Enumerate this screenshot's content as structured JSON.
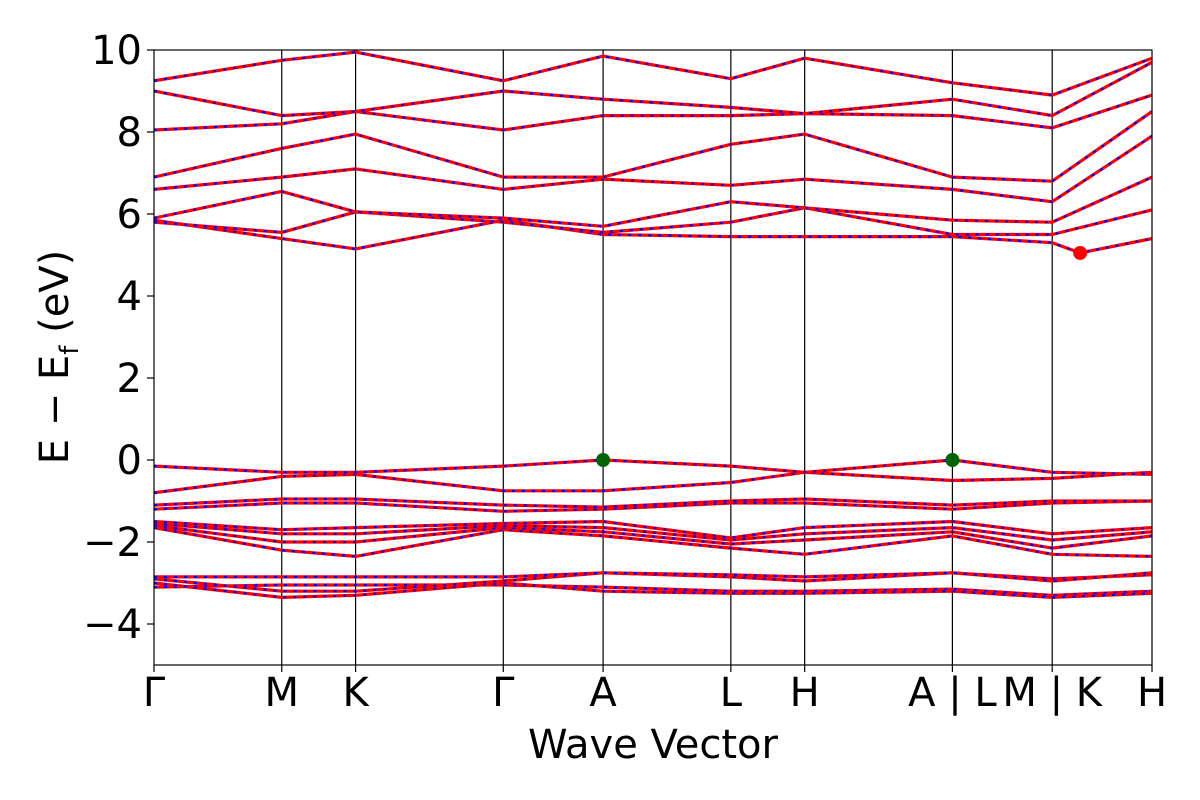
{
  "chart_data": {
    "type": "line",
    "title": "",
    "xlabel": "Wave Vector",
    "ylabel": "E − E_f (eV)",
    "ylabel_parts": {
      "main": "E − E",
      "sub": "f",
      "unit": " (eV)"
    },
    "ylim": [
      -5,
      10
    ],
    "yticks": [
      -4,
      -2,
      0,
      2,
      4,
      6,
      8,
      10
    ],
    "ytick_labels": [
      "−4",
      "−2",
      "0",
      "2",
      "4",
      "6",
      "8",
      "10"
    ],
    "grid": false,
    "legend": "none",
    "colors": {
      "band": "#ff0000",
      "overlay": "#0000ff",
      "vbm_marker": "#006400",
      "cbm_marker": "#ff0000",
      "axis": "#000000"
    },
    "kpath": {
      "positions": [
        0,
        1.28,
        2.02,
        3.5,
        4.5,
        5.78,
        6.52,
        8.0,
        9.0,
        10.0
      ],
      "labels": [
        "Γ",
        "M",
        "K",
        "Γ",
        "A",
        "L",
        "H",
        "A | L",
        "M | K",
        "H"
      ],
      "segment_breaks": [
        8.0,
        9.0
      ]
    },
    "markers": [
      {
        "name": "VBM",
        "x": 4.5,
        "y": 0.0,
        "color": "#006400"
      },
      {
        "name": "VBM",
        "x": 8.0,
        "y": 0.0,
        "color": "#006400"
      },
      {
        "name": "CBM",
        "x": 9.28,
        "y": 5.05,
        "color": "#ff0000"
      }
    ],
    "series": [
      {
        "values": [
          [
            0,
            -3.1
          ],
          [
            1.28,
            -3.05
          ],
          [
            2.02,
            -3.05
          ],
          [
            3.5,
            -3.05
          ],
          [
            4.5,
            -3.1
          ],
          [
            5.78,
            -3.2
          ],
          [
            6.52,
            -3.2
          ],
          [
            8.0,
            -3.15
          ],
          [
            9.0,
            -3.3
          ],
          [
            10.0,
            -3.2
          ]
        ]
      },
      {
        "values": [
          [
            0,
            -3.0
          ],
          [
            1.28,
            -3.35
          ],
          [
            2.02,
            -3.3
          ],
          [
            3.5,
            -3.0
          ],
          [
            4.5,
            -3.2
          ],
          [
            5.78,
            -3.25
          ],
          [
            6.52,
            -3.25
          ],
          [
            8.0,
            -3.2
          ],
          [
            9.0,
            -3.35
          ],
          [
            10.0,
            -3.25
          ]
        ]
      },
      {
        "values": [
          [
            0,
            -2.9
          ],
          [
            1.28,
            -3.2
          ],
          [
            2.02,
            -3.2
          ],
          [
            3.5,
            -2.95
          ],
          [
            4.5,
            -2.75
          ],
          [
            5.78,
            -2.85
          ],
          [
            6.52,
            -2.95
          ],
          [
            8.0,
            -2.75
          ],
          [
            9.0,
            -2.9
          ],
          [
            10.0,
            -2.8
          ]
        ]
      },
      {
        "values": [
          [
            0,
            -2.85
          ],
          [
            1.28,
            -2.85
          ],
          [
            2.02,
            -2.85
          ],
          [
            3.5,
            -2.85
          ],
          [
            4.5,
            -2.75
          ],
          [
            5.78,
            -2.8
          ],
          [
            6.52,
            -2.85
          ],
          [
            8.0,
            -2.75
          ],
          [
            9.0,
            -2.95
          ],
          [
            10.0,
            -2.75
          ]
        ]
      },
      {
        "values": [
          [
            0,
            -1.65
          ],
          [
            1.28,
            -2.2
          ],
          [
            2.02,
            -2.35
          ],
          [
            3.5,
            -1.7
          ],
          [
            4.5,
            -1.85
          ],
          [
            5.78,
            -2.15
          ],
          [
            6.52,
            -2.3
          ],
          [
            8.0,
            -1.85
          ],
          [
            9.0,
            -2.3
          ],
          [
            10.0,
            -2.35
          ]
        ]
      },
      {
        "values": [
          [
            0,
            -1.6
          ],
          [
            1.28,
            -2.0
          ],
          [
            2.02,
            -2.0
          ],
          [
            3.5,
            -1.65
          ],
          [
            4.5,
            -1.75
          ],
          [
            5.78,
            -2.05
          ],
          [
            6.52,
            -1.95
          ],
          [
            8.0,
            -1.75
          ],
          [
            9.0,
            -2.15
          ],
          [
            10.0,
            -1.85
          ]
        ]
      },
      {
        "values": [
          [
            0,
            -1.55
          ],
          [
            1.28,
            -1.8
          ],
          [
            2.02,
            -1.8
          ],
          [
            3.5,
            -1.6
          ],
          [
            4.5,
            -1.65
          ],
          [
            5.78,
            -1.95
          ],
          [
            6.52,
            -1.8
          ],
          [
            8.0,
            -1.65
          ],
          [
            9.0,
            -1.95
          ],
          [
            10.0,
            -1.75
          ]
        ]
      },
      {
        "values": [
          [
            0,
            -1.5
          ],
          [
            1.28,
            -1.7
          ],
          [
            2.02,
            -1.65
          ],
          [
            3.5,
            -1.55
          ],
          [
            4.5,
            -1.5
          ],
          [
            5.78,
            -1.9
          ],
          [
            6.52,
            -1.65
          ],
          [
            8.0,
            -1.5
          ],
          [
            9.0,
            -1.8
          ],
          [
            10.0,
            -1.65
          ]
        ]
      },
      {
        "values": [
          [
            0,
            -1.2
          ],
          [
            1.28,
            -1.05
          ],
          [
            2.02,
            -1.05
          ],
          [
            3.5,
            -1.25
          ],
          [
            4.5,
            -1.2
          ],
          [
            5.78,
            -1.05
          ],
          [
            6.52,
            -1.05
          ],
          [
            8.0,
            -1.2
          ],
          [
            9.0,
            -1.05
          ],
          [
            10.0,
            -1.0
          ]
        ]
      },
      {
        "values": [
          [
            0,
            -1.1
          ],
          [
            1.28,
            -0.95
          ],
          [
            2.02,
            -0.95
          ],
          [
            3.5,
            -1.1
          ],
          [
            4.5,
            -1.15
          ],
          [
            5.78,
            -1.0
          ],
          [
            6.52,
            -0.95
          ],
          [
            8.0,
            -1.1
          ],
          [
            9.0,
            -1.0
          ],
          [
            10.0,
            -1.0
          ]
        ]
      },
      {
        "values": [
          [
            0,
            -0.8
          ],
          [
            1.28,
            -0.4
          ],
          [
            2.02,
            -0.35
          ],
          [
            3.5,
            -0.75
          ],
          [
            4.5,
            -0.75
          ],
          [
            5.78,
            -0.55
          ],
          [
            6.52,
            -0.3
          ],
          [
            8.0,
            -0.5
          ],
          [
            9.0,
            -0.45
          ],
          [
            10.0,
            -0.3
          ]
        ]
      },
      {
        "values": [
          [
            0,
            -0.15
          ],
          [
            1.28,
            -0.3
          ],
          [
            2.02,
            -0.3
          ],
          [
            3.5,
            -0.15
          ],
          [
            4.5,
            0.0
          ],
          [
            5.78,
            -0.15
          ],
          [
            6.52,
            -0.3
          ],
          [
            8.0,
            0.0
          ],
          [
            9.0,
            -0.3
          ],
          [
            10.0,
            -0.35
          ]
        ]
      },
      {
        "values": [
          [
            0,
            5.85
          ],
          [
            1.28,
            5.4
          ],
          [
            2.02,
            5.15
          ],
          [
            3.5,
            5.85
          ],
          [
            4.5,
            5.5
          ],
          [
            5.78,
            5.45
          ],
          [
            6.52,
            5.45
          ],
          [
            8.0,
            5.45
          ],
          [
            9.0,
            5.3
          ],
          [
            9.28,
            5.05
          ],
          [
            10.0,
            5.4
          ]
        ]
      },
      {
        "values": [
          [
            0,
            5.8
          ],
          [
            1.28,
            5.55
          ],
          [
            2.02,
            6.05
          ],
          [
            3.5,
            5.8
          ],
          [
            4.5,
            5.55
          ],
          [
            5.78,
            5.8
          ],
          [
            6.52,
            6.15
          ],
          [
            8.0,
            5.5
          ],
          [
            9.0,
            5.5
          ],
          [
            10.0,
            6.1
          ]
        ]
      },
      {
        "values": [
          [
            0,
            5.9
          ],
          [
            1.28,
            6.55
          ],
          [
            2.02,
            6.05
          ],
          [
            3.5,
            5.9
          ],
          [
            4.5,
            5.7
          ],
          [
            5.78,
            6.3
          ],
          [
            6.52,
            6.15
          ],
          [
            8.0,
            5.85
          ],
          [
            9.0,
            5.8
          ],
          [
            10.0,
            6.9
          ]
        ]
      },
      {
        "values": [
          [
            0,
            6.6
          ],
          [
            1.28,
            6.9
          ],
          [
            2.02,
            7.1
          ],
          [
            3.5,
            6.6
          ],
          [
            4.5,
            6.85
          ],
          [
            5.78,
            6.7
          ],
          [
            6.52,
            6.85
          ],
          [
            8.0,
            6.6
          ],
          [
            9.0,
            6.3
          ],
          [
            10.0,
            7.9
          ]
        ]
      },
      {
        "values": [
          [
            0,
            6.9
          ],
          [
            1.28,
            7.6
          ],
          [
            2.02,
            7.95
          ],
          [
            3.5,
            6.9
          ],
          [
            4.5,
            6.9
          ],
          [
            5.78,
            7.7
          ],
          [
            6.52,
            7.95
          ],
          [
            8.0,
            6.9
          ],
          [
            9.0,
            6.8
          ],
          [
            10.0,
            8.5
          ]
        ]
      },
      {
        "values": [
          [
            0,
            8.05
          ],
          [
            1.28,
            8.2
          ],
          [
            2.02,
            8.5
          ],
          [
            3.5,
            8.05
          ],
          [
            4.5,
            8.4
          ],
          [
            5.78,
            8.4
          ],
          [
            6.52,
            8.45
          ],
          [
            8.0,
            8.4
          ],
          [
            9.0,
            8.1
          ],
          [
            10.0,
            8.9
          ]
        ]
      },
      {
        "values": [
          [
            0,
            9.0
          ],
          [
            1.28,
            8.4
          ],
          [
            2.02,
            8.5
          ],
          [
            3.5,
            9.0
          ],
          [
            4.5,
            8.8
          ],
          [
            5.78,
            8.6
          ],
          [
            6.52,
            8.45
          ],
          [
            8.0,
            8.8
          ],
          [
            9.0,
            8.4
          ],
          [
            10.0,
            9.7
          ]
        ]
      },
      {
        "values": [
          [
            0,
            9.25
          ],
          [
            1.28,
            9.75
          ],
          [
            2.02,
            9.95
          ],
          [
            3.5,
            9.25
          ],
          [
            4.5,
            9.85
          ],
          [
            5.78,
            9.3
          ],
          [
            6.52,
            9.8
          ],
          [
            8.0,
            9.2
          ],
          [
            9.0,
            8.9
          ],
          [
            10.0,
            9.8
          ]
        ]
      }
    ]
  }
}
